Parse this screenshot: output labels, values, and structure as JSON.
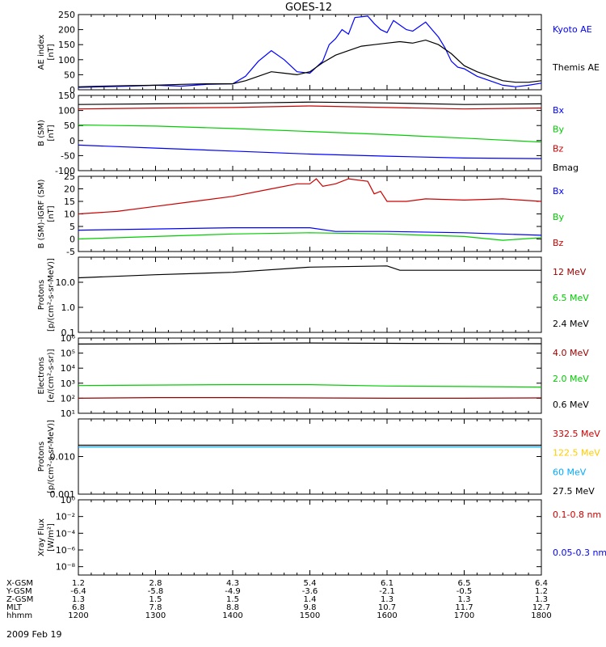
{
  "title": "GOES-12",
  "date_label": "2009 Feb 19",
  "orbit_table": {
    "row_labels": [
      "X-GSM",
      "Y-GSM",
      "Z-GSM",
      "MLT",
      "hhmm"
    ],
    "columns": [
      {
        "time": 1200,
        "values": [
          "1.2",
          "-6.4",
          "1.3",
          "6.8",
          "1200"
        ]
      },
      {
        "time": 1300,
        "values": [
          "2.8",
          "-5.8",
          "1.5",
          "7.8",
          "1300"
        ]
      },
      {
        "time": 1400,
        "values": [
          "4.3",
          "-4.9",
          "1.5",
          "8.8",
          "1400"
        ]
      },
      {
        "time": 1500,
        "values": [
          "5.4",
          "-3.6",
          "1.4",
          "9.8",
          "1500"
        ]
      },
      {
        "time": 1600,
        "values": [
          "6.1",
          "-2.1",
          "1.3",
          "10.7",
          "1600"
        ]
      },
      {
        "time": 1700,
        "values": [
          "6.5",
          "-0.5",
          "1.3",
          "11.7",
          "1700"
        ]
      },
      {
        "time": 1800,
        "values": [
          "6.4",
          "1.2",
          "1.3",
          "12.7",
          "1800"
        ]
      }
    ]
  },
  "chart_data": [
    {
      "type": "line",
      "id": "ae",
      "ylabel_lines": [
        "AE index",
        "[nT]"
      ],
      "ylim": [
        0,
        250
      ],
      "yticks": [
        0,
        50,
        100,
        150,
        200,
        250
      ],
      "scale": "linear",
      "legend": [
        {
          "name": "Kyoto AE",
          "color": "#0000ff"
        },
        {
          "name": "Themis AE",
          "color": "#000000"
        }
      ],
      "series": [
        {
          "name": "Kyoto AE",
          "color": "#0000ff",
          "x": [
            1200,
            1220,
            1240,
            1300,
            1320,
            1340,
            1400,
            1410,
            1420,
            1430,
            1440,
            1450,
            1500,
            1510,
            1515,
            1520,
            1525,
            1530,
            1535,
            1545,
            1550,
            1555,
            1600,
            1605,
            1610,
            1615,
            1620,
            1625,
            1630,
            1635,
            1640,
            1645,
            1650,
            1655,
            1700,
            1710,
            1720,
            1730,
            1740,
            1750,
            1800
          ],
          "y": [
            8,
            10,
            12,
            15,
            12,
            18,
            20,
            45,
            95,
            130,
            100,
            60,
            55,
            95,
            150,
            170,
            200,
            185,
            240,
            245,
            220,
            200,
            190,
            230,
            215,
            200,
            195,
            210,
            225,
            200,
            175,
            140,
            95,
            75,
            70,
            45,
            30,
            15,
            10,
            15,
            22
          ]
        },
        {
          "name": "Themis AE",
          "color": "#000000",
          "x": [
            1200,
            1220,
            1240,
            1300,
            1320,
            1340,
            1400,
            1410,
            1420,
            1430,
            1440,
            1450,
            1500,
            1510,
            1520,
            1530,
            1540,
            1550,
            1600,
            1610,
            1620,
            1630,
            1640,
            1650,
            1700,
            1710,
            1720,
            1730,
            1740,
            1750,
            1800
          ],
          "y": [
            10,
            12,
            14,
            15,
            18,
            20,
            20,
            30,
            45,
            60,
            55,
            50,
            60,
            90,
            115,
            130,
            145,
            150,
            155,
            160,
            155,
            165,
            150,
            120,
            80,
            60,
            45,
            30,
            25,
            25,
            30
          ]
        }
      ]
    },
    {
      "type": "line",
      "id": "bsm",
      "ylabel_lines": [
        "B (SM)",
        "[nT]"
      ],
      "ylim": [
        -100,
        150
      ],
      "yticks": [
        -100,
        -50,
        0,
        50,
        100,
        150
      ],
      "scale": "linear",
      "legend": [
        {
          "name": "Bx",
          "color": "#0000ff"
        },
        {
          "name": "By",
          "color": "#00cc00"
        },
        {
          "name": "Bz",
          "color": "#cc0000"
        },
        {
          "name": "Bmag",
          "color": "#000000"
        }
      ],
      "series": [
        {
          "name": "Bx",
          "color": "#0000ff",
          "x": [
            1200,
            1300,
            1400,
            1500,
            1600,
            1700,
            1800
          ],
          "y": [
            -15,
            -25,
            -35,
            -45,
            -52,
            -58,
            -60
          ]
        },
        {
          "name": "By",
          "color": "#00cc00",
          "x": [
            1200,
            1300,
            1400,
            1500,
            1600,
            1700,
            1800
          ],
          "y": [
            52,
            48,
            40,
            30,
            20,
            8,
            -5
          ]
        },
        {
          "name": "Bz",
          "color": "#cc0000",
          "x": [
            1200,
            1300,
            1400,
            1500,
            1600,
            1700,
            1800
          ],
          "y": [
            105,
            108,
            110,
            115,
            110,
            105,
            108
          ]
        },
        {
          "name": "Bmag",
          "color": "#000000",
          "x": [
            1200,
            1300,
            1400,
            1500,
            1600,
            1700,
            1800
          ],
          "y": [
            120,
            122,
            124,
            128,
            125,
            120,
            122
          ]
        }
      ]
    },
    {
      "type": "line",
      "id": "bsmigrf",
      "ylabel_lines": [
        "B (SM)-IGRF (SM)",
        "[nT]"
      ],
      "ylim": [
        -5,
        25
      ],
      "yticks": [
        -5,
        0,
        5,
        10,
        15,
        20,
        25
      ],
      "scale": "linear",
      "legend": [
        {
          "name": "Bx",
          "color": "#0000ff"
        },
        {
          "name": "By",
          "color": "#00cc00"
        },
        {
          "name": "Bz",
          "color": "#cc0000"
        }
      ],
      "series": [
        {
          "name": "Bx",
          "color": "#0000ff",
          "x": [
            1200,
            1300,
            1400,
            1500,
            1520,
            1600,
            1700,
            1800
          ],
          "y": [
            3.5,
            4,
            4.5,
            4.5,
            3,
            3,
            2.5,
            1.5
          ]
        },
        {
          "name": "By",
          "color": "#00cc00",
          "x": [
            1200,
            1300,
            1400,
            1500,
            1600,
            1700,
            1730,
            1800
          ],
          "y": [
            0,
            1,
            2,
            2.5,
            2,
            1,
            -0.5,
            0.5
          ]
        },
        {
          "name": "Bz",
          "color": "#cc0000",
          "x": [
            1200,
            1230,
            1300,
            1330,
            1400,
            1430,
            1450,
            1500,
            1505,
            1510,
            1520,
            1530,
            1545,
            1550,
            1555,
            1600,
            1615,
            1630,
            1700,
            1730,
            1800
          ],
          "y": [
            10,
            11,
            13,
            15,
            17,
            20,
            22,
            22,
            24,
            21,
            22,
            24,
            23,
            18,
            19,
            15,
            15,
            16,
            15.5,
            16,
            15
          ]
        }
      ]
    },
    {
      "type": "line",
      "id": "protons_hi",
      "ylabel_lines": [
        "Protons",
        "[p/(cm²-s-sr-MeV)]"
      ],
      "ylim": [
        0.1,
        100
      ],
      "scale": "log",
      "yticks": [
        0.1,
        1,
        10
      ],
      "ytick_labels": [
        "0.1",
        "1.0",
        "10.0"
      ],
      "legend": [
        {
          "name": "12 MeV",
          "color": "#990000"
        },
        {
          "name": "6.5 MeV",
          "color": "#00cc00"
        },
        {
          "name": "2.4 MeV",
          "color": "#000000"
        }
      ],
      "series": [
        {
          "name": "2.4 MeV",
          "color": "#000000",
          "x": [
            1200,
            1300,
            1400,
            1500,
            1600,
            1610,
            1700,
            1800
          ],
          "y": [
            15,
            20,
            25,
            40,
            45,
            30,
            30,
            30
          ]
        }
      ]
    },
    {
      "type": "line",
      "id": "electrons",
      "ylabel_lines": [
        "Electrons",
        "[e/(cm²-s-sr)]"
      ],
      "ylim": [
        10,
        1000000
      ],
      "scale": "log",
      "yticks": [
        10,
        100,
        1000,
        10000,
        100000,
        1000000
      ],
      "ytick_labels": [
        "10¹",
        "10²",
        "10³",
        "10⁴",
        "10⁵",
        "10⁶"
      ],
      "legend": [
        {
          "name": "4.0 MeV",
          "color": "#990000"
        },
        {
          "name": "2.0 MeV",
          "color": "#00cc00"
        },
        {
          "name": "0.6 MeV",
          "color": "#000000"
        }
      ],
      "series": [
        {
          "name": "0.6 MeV",
          "color": "#000000",
          "x": [
            1200,
            1300,
            1400,
            1500,
            1600,
            1700,
            1800
          ],
          "y": [
            400000,
            420000,
            450000,
            470000,
            450000,
            430000,
            420000
          ]
        },
        {
          "name": "2.0 MeV",
          "color": "#00cc00",
          "x": [
            1200,
            1300,
            1400,
            1500,
            1600,
            1700,
            1800
          ],
          "y": [
            700,
            750,
            800,
            800,
            650,
            600,
            550
          ]
        },
        {
          "name": "4.0 MeV",
          "color": "#990000",
          "x": [
            1200,
            1300,
            1400,
            1500,
            1600,
            1700,
            1800
          ],
          "y": [
            100,
            110,
            110,
            105,
            100,
            100,
            105
          ]
        }
      ]
    },
    {
      "type": "line",
      "id": "protons_mev",
      "ylabel_lines": [
        "Protons",
        "[p/(cm²-s-sr-MeV)]"
      ],
      "ylim": [
        0.001,
        0.1
      ],
      "scale": "log",
      "yticks": [
        0.001,
        0.01
      ],
      "ytick_labels": [
        "0.001",
        "0.010"
      ],
      "legend": [
        {
          "name": "332.5 MeV",
          "color": "#cc0000"
        },
        {
          "name": "122.5 MeV",
          "color": "#ffcc00"
        },
        {
          "name": "60 MeV",
          "color": "#00aaff"
        },
        {
          "name": "27.5 MeV",
          "color": "#000000"
        }
      ],
      "series": [
        {
          "name": "27.5 MeV",
          "color": "#000000",
          "x": [
            1200,
            1800
          ],
          "y": [
            0.02,
            0.02
          ]
        },
        {
          "name": "60 MeV",
          "color": "#00aaff",
          "x": [
            1200,
            1800
          ],
          "y": [
            0.018,
            0.018
          ]
        }
      ]
    },
    {
      "type": "line",
      "id": "xray",
      "ylabel_lines": [
        "Xray Flux",
        "[W/m²]"
      ],
      "ylim": [
        1e-09,
        1
      ],
      "scale": "log",
      "yticks": [
        1,
        0.01,
        0.0001,
        1e-06,
        1e-08
      ],
      "ytick_labels": [
        "10⁰",
        "10⁻²",
        "10⁻⁴",
        "10⁻⁶",
        "10⁻⁸"
      ],
      "legend": [
        {
          "name": "0.1-0.8 nm",
          "color": "#cc0000"
        },
        {
          "name": "0.05-0.3 nm",
          "color": "#0000ff"
        }
      ],
      "series": []
    }
  ]
}
